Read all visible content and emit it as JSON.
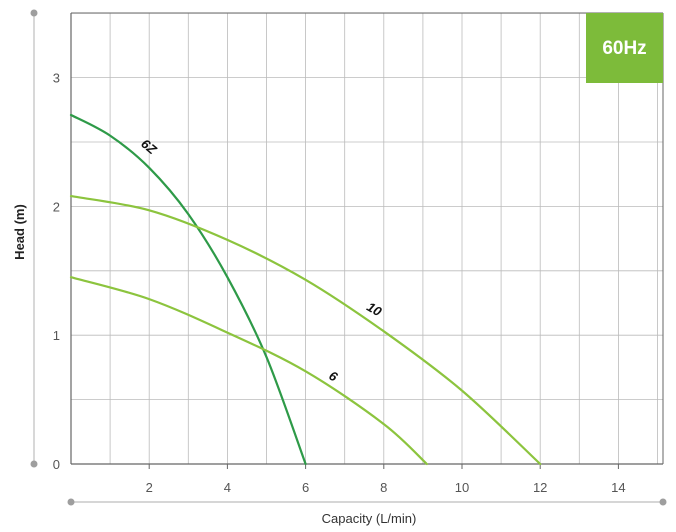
{
  "chart_data": {
    "type": "line",
    "badge": "60Hz",
    "xlabel": "Capacity (L/min)",
    "ylabel": "Head (m)",
    "x_ticks": [
      "2",
      "4",
      "6",
      "8",
      "10",
      "12",
      "14"
    ],
    "y_ticks": [
      "0",
      "1",
      "2",
      "3"
    ],
    "xlim": [
      0,
      15
    ],
    "ylim": [
      0,
      3.5
    ],
    "grid": true,
    "colors": {
      "badge": "#7dbb3a",
      "light_green": "#8cc43e",
      "dark_green": "#2e9a48",
      "grid": "#bbbbbb",
      "axis": "#666666"
    },
    "series": [
      {
        "name": "6Z",
        "color": "#2e9a48",
        "points": [
          [
            0,
            2.71
          ],
          [
            1,
            2.55
          ],
          [
            2,
            2.3
          ],
          [
            3,
            1.94
          ],
          [
            4,
            1.45
          ],
          [
            5,
            0.83
          ],
          [
            6,
            0.0
          ]
        ]
      },
      {
        "name": "10",
        "color": "#8cc43e",
        "points": [
          [
            0,
            2.08
          ],
          [
            2,
            1.97
          ],
          [
            4,
            1.74
          ],
          [
            6,
            1.43
          ],
          [
            8,
            1.03
          ],
          [
            10,
            0.57
          ],
          [
            12,
            0.0
          ]
        ]
      },
      {
        "name": "6",
        "color": "#8cc43e",
        "points": [
          [
            0,
            1.45
          ],
          [
            2,
            1.28
          ],
          [
            4,
            1.02
          ],
          [
            6,
            0.72
          ],
          [
            8,
            0.31
          ],
          [
            9.1,
            0.0
          ]
        ]
      }
    ]
  }
}
